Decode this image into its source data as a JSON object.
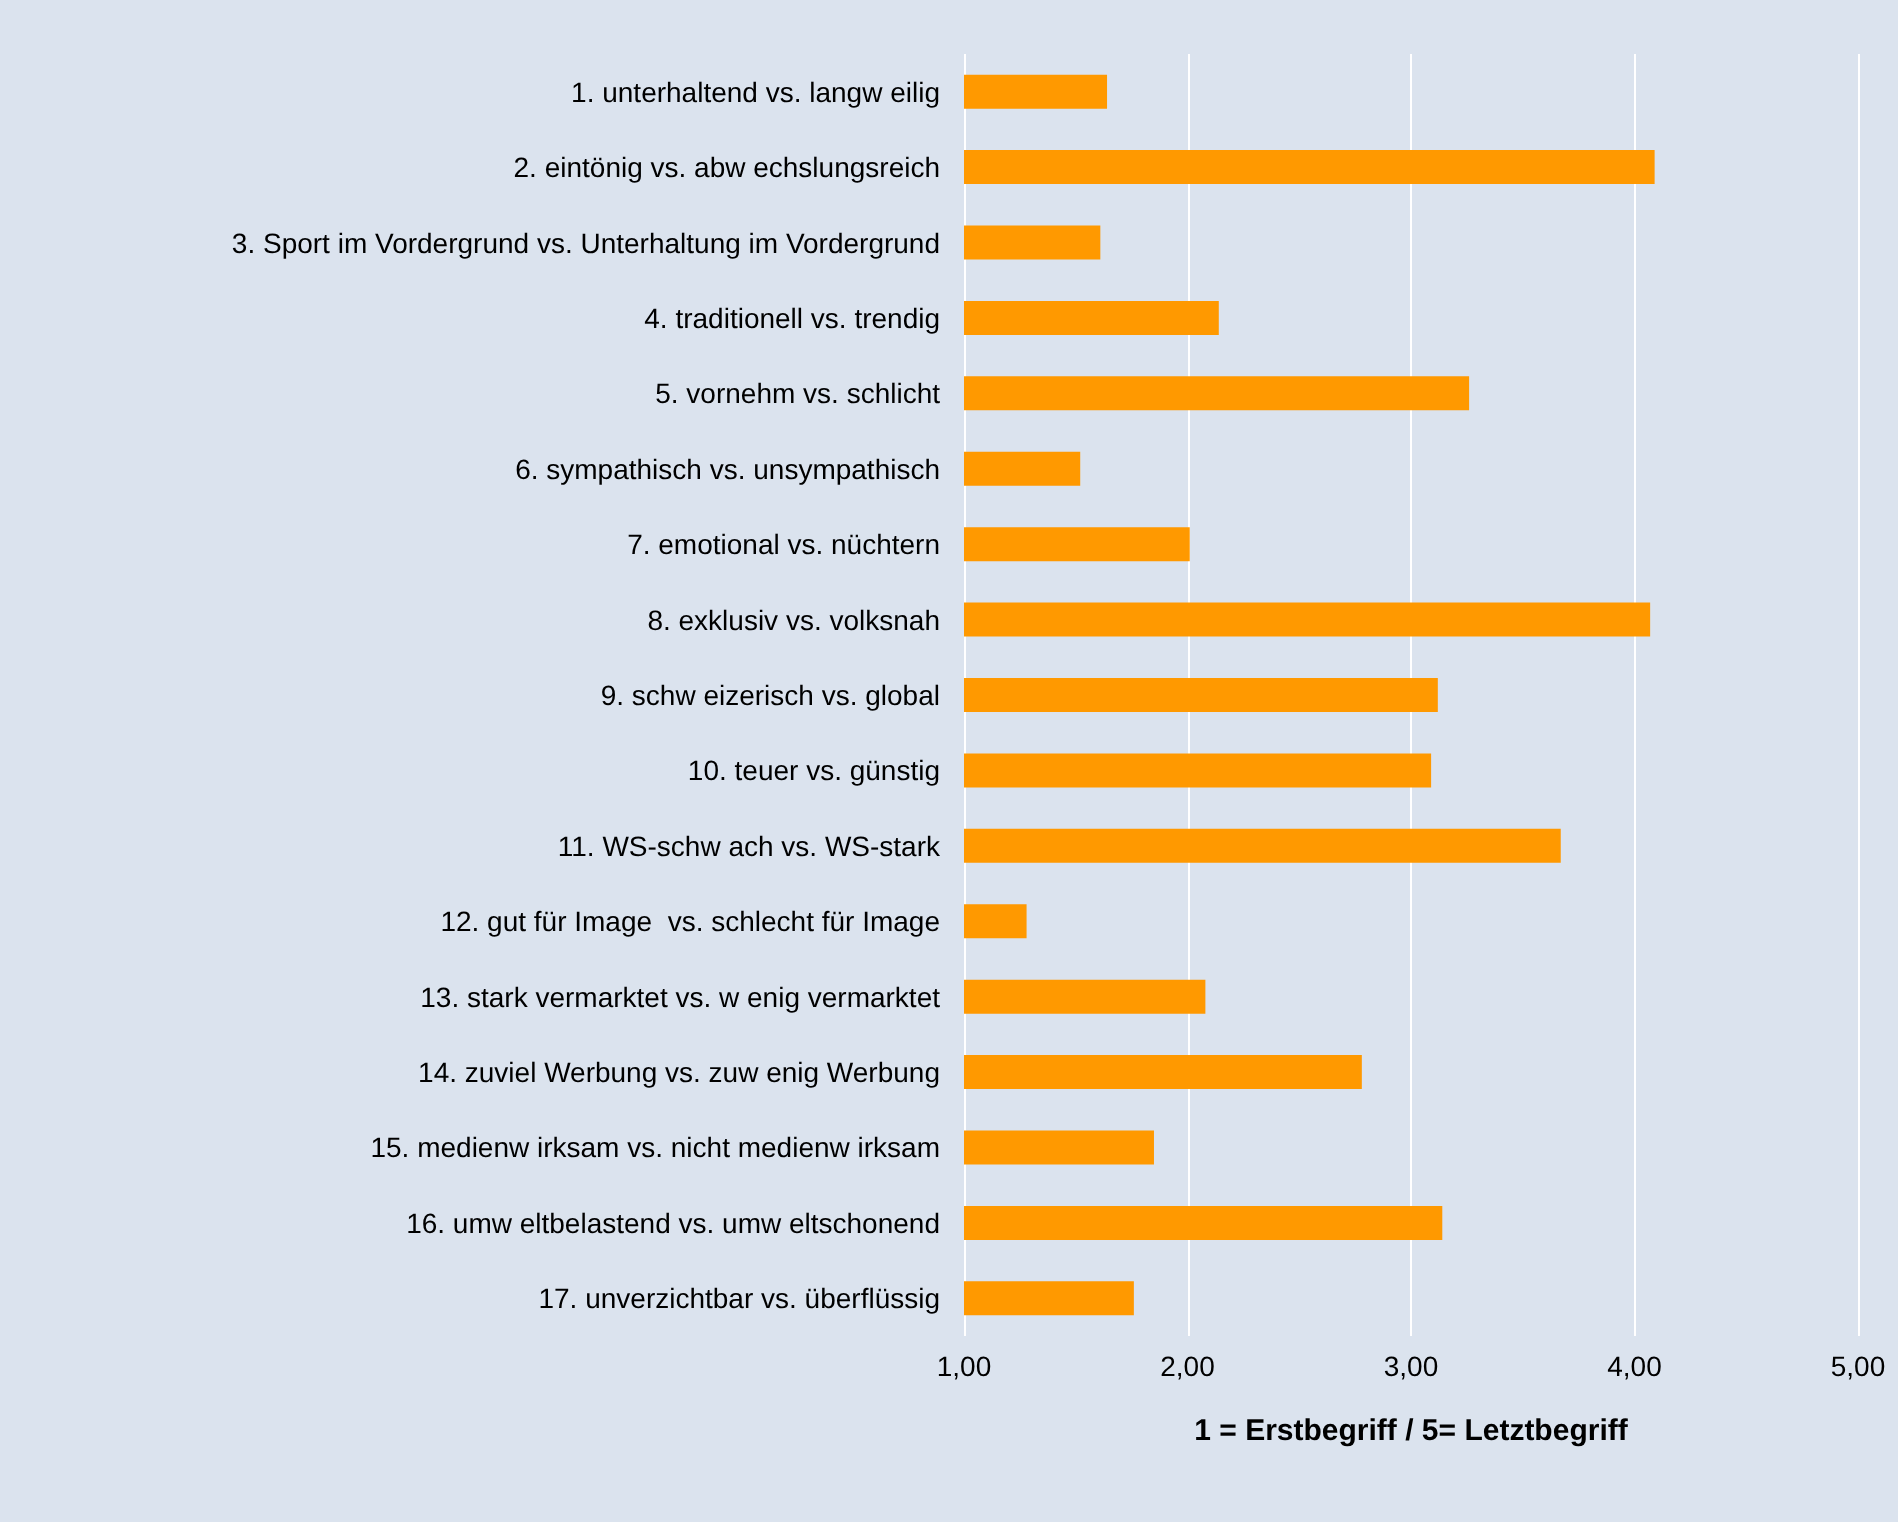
{
  "chart_data": {
    "type": "bar",
    "orientation": "horizontal",
    "xlabel": "1 = Erstbegriff / 5= Letztbegriff",
    "categories": [
      "1. unterhaltend vs. langw eilig",
      "2. eintönig vs. abw echslungsreich",
      "3. Sport im Vordergrund vs. Unterhaltung im Vordergrund",
      "4. traditionell vs. trendig",
      "5. vornehm vs. schlicht",
      "6. sympathisch vs. unsympathisch",
      "7. emotional vs. nüchtern",
      "8. exklusiv vs. volksnah",
      "9. schw eizerisch vs. global",
      "10. teuer vs. günstig",
      "11. WS-schw ach vs. WS-stark",
      "12. gut für Image  vs. schlecht für Image",
      "13. stark vermarktet vs. w enig vermarktet",
      "14. zuviel Werbung vs. zuw enig Werbung",
      "15. medienw irksam vs. nicht medienw irksam",
      "16. umw eltbelastend vs. umw eltschonend",
      "17. unverzichtbar vs. überflüssig"
    ],
    "values": [
      1.64,
      4.09,
      1.61,
      2.14,
      3.26,
      1.52,
      2.01,
      4.07,
      3.12,
      3.09,
      3.67,
      1.28,
      2.08,
      2.78,
      1.85,
      3.14,
      1.76
    ],
    "color": "#ff9900",
    "xlim": [
      1,
      5
    ],
    "xticks": [
      {
        "value": 1,
        "label": "1,00"
      },
      {
        "value": 2,
        "label": "2,00"
      },
      {
        "value": 3,
        "label": "3,00"
      },
      {
        "value": 4,
        "label": "4,00"
      },
      {
        "value": 5,
        "label": "5,00"
      }
    ],
    "grid": "x"
  }
}
